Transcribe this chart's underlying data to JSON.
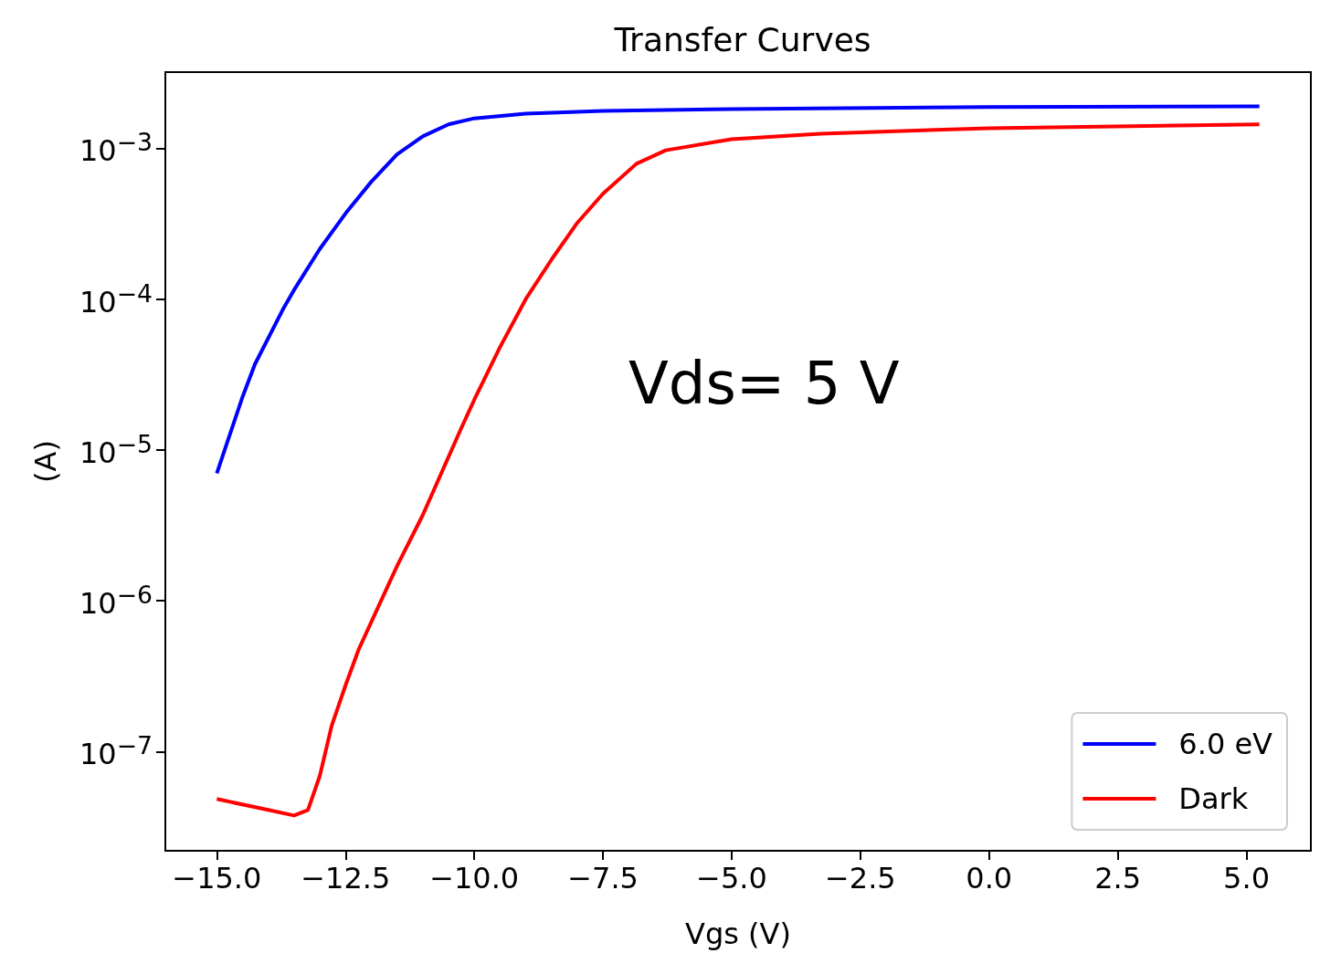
{
  "chart_data": {
    "type": "line",
    "title": "Transfer Curves",
    "xlabel": "Vgs (V)",
    "ylabel": "(A)",
    "annotations": [
      "Vds= 5 V"
    ],
    "log": "y",
    "grid": false,
    "legend": "bottom right",
    "marker": "none",
    "line_style": "solid",
    "xlim": [
      -16,
      6.25
    ],
    "xticks": [
      {
        "value": -15,
        "label": "−15.0"
      },
      {
        "value": -12.5,
        "label": "−12.5"
      },
      {
        "value": -10,
        "label": "−10.0"
      },
      {
        "value": -7.5,
        "label": "−7.5"
      },
      {
        "value": -5,
        "label": "−5.0"
      },
      {
        "value": -2.5,
        "label": "−2.5"
      },
      {
        "value": 0,
        "label": "0.0"
      },
      {
        "value": 2.5,
        "label": "2.5"
      },
      {
        "value": 5,
        "label": "5.0"
      }
    ],
    "ylim": [
      2.2e-08,
      0.0032
    ],
    "yticks": [
      {
        "value": 1e-07,
        "label": "10$^{−7}$"
      },
      {
        "value": 1e-06,
        "label": "10$^{−6}$"
      },
      {
        "value": 1e-05,
        "label": "10$^{−5}$"
      },
      {
        "value": 0.0001,
        "label": "10$^{−4}$"
      },
      {
        "value": 0.001,
        "label": "10$^{−3}$"
      }
    ],
    "series": [
      {
        "name": "6.0 eV",
        "color": "#0000ff",
        "x": [
          -15,
          -14.5,
          -14.26,
          -13.72,
          -13.5,
          -13,
          -12.5,
          -12,
          -11.5,
          -11,
          -10.5,
          -10,
          -9,
          -7.5,
          -5,
          0,
          5.25
        ],
        "values": [
          7e-06,
          2.25e-05,
          3.7e-05,
          8.5e-05,
          0.000115,
          0.000215,
          0.00037,
          0.0006,
          0.00091,
          0.0012,
          0.00144,
          0.00158,
          0.0017,
          0.00177,
          0.00182,
          0.00188,
          0.0019
        ]
      },
      {
        "name": "Dark",
        "color": "#ff0000",
        "x": [
          -15,
          -14,
          -13.5,
          -13.23,
          -13,
          -12.77,
          -12.5,
          -12.24,
          -11.5,
          -11,
          -10.25,
          -10,
          -9.5,
          -9,
          -8.48,
          -8,
          -7.5,
          -6.85,
          -6.28,
          -5,
          -3.27,
          0,
          5.25
        ],
        "values": [
          4.85e-08,
          4.1e-08,
          3.77e-08,
          4.1e-08,
          6.9e-08,
          1.48e-07,
          2.75e-07,
          4.8e-07,
          1.7e-06,
          3.7e-06,
          1.4e-05,
          2.15e-05,
          4.8e-05,
          0.0001,
          0.000187,
          0.00032,
          0.0005,
          0.00079,
          0.00097,
          0.00115,
          0.00125,
          0.00136,
          0.00144
        ]
      }
    ]
  }
}
